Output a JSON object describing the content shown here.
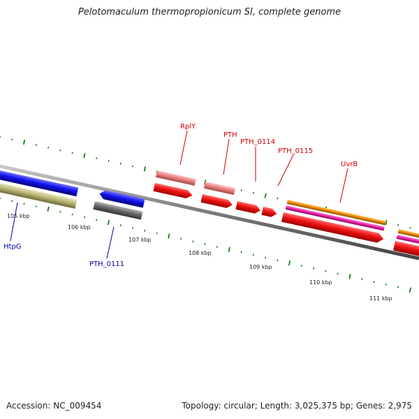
{
  "title": "Pelotomaculum thermopropionicum SI, complete genome",
  "footer": {
    "accession": "Accession: NC_009454",
    "summary": "Topology: circular; Length: 3,025,375 bp; Genes: 2,975"
  },
  "colors": {
    "backbone": "#7a7a7a",
    "tick": "#1a7a1a",
    "label_forward": "#cc0000",
    "label_reverse": "#0000aa",
    "red": "#ee1111",
    "pink": "#ee8080",
    "magenta": "#ee22aa",
    "orange": "#ee8800",
    "blue": "#1414ee",
    "gray": "#6a6a6a",
    "olive": "#bcb878"
  },
  "kbp_labels": [
    "105 kbp",
    "106 kbp",
    "107 kbp",
    "108 kbp",
    "109 kbp",
    "110 kbp",
    "111 kbp"
  ],
  "gene_labels_forward": [
    "RplY",
    "PTH",
    "PTH_0114",
    "PTH_0115",
    "UvrB"
  ],
  "gene_labels_reverse": [
    "HtpG",
    "PTH_0111"
  ]
}
